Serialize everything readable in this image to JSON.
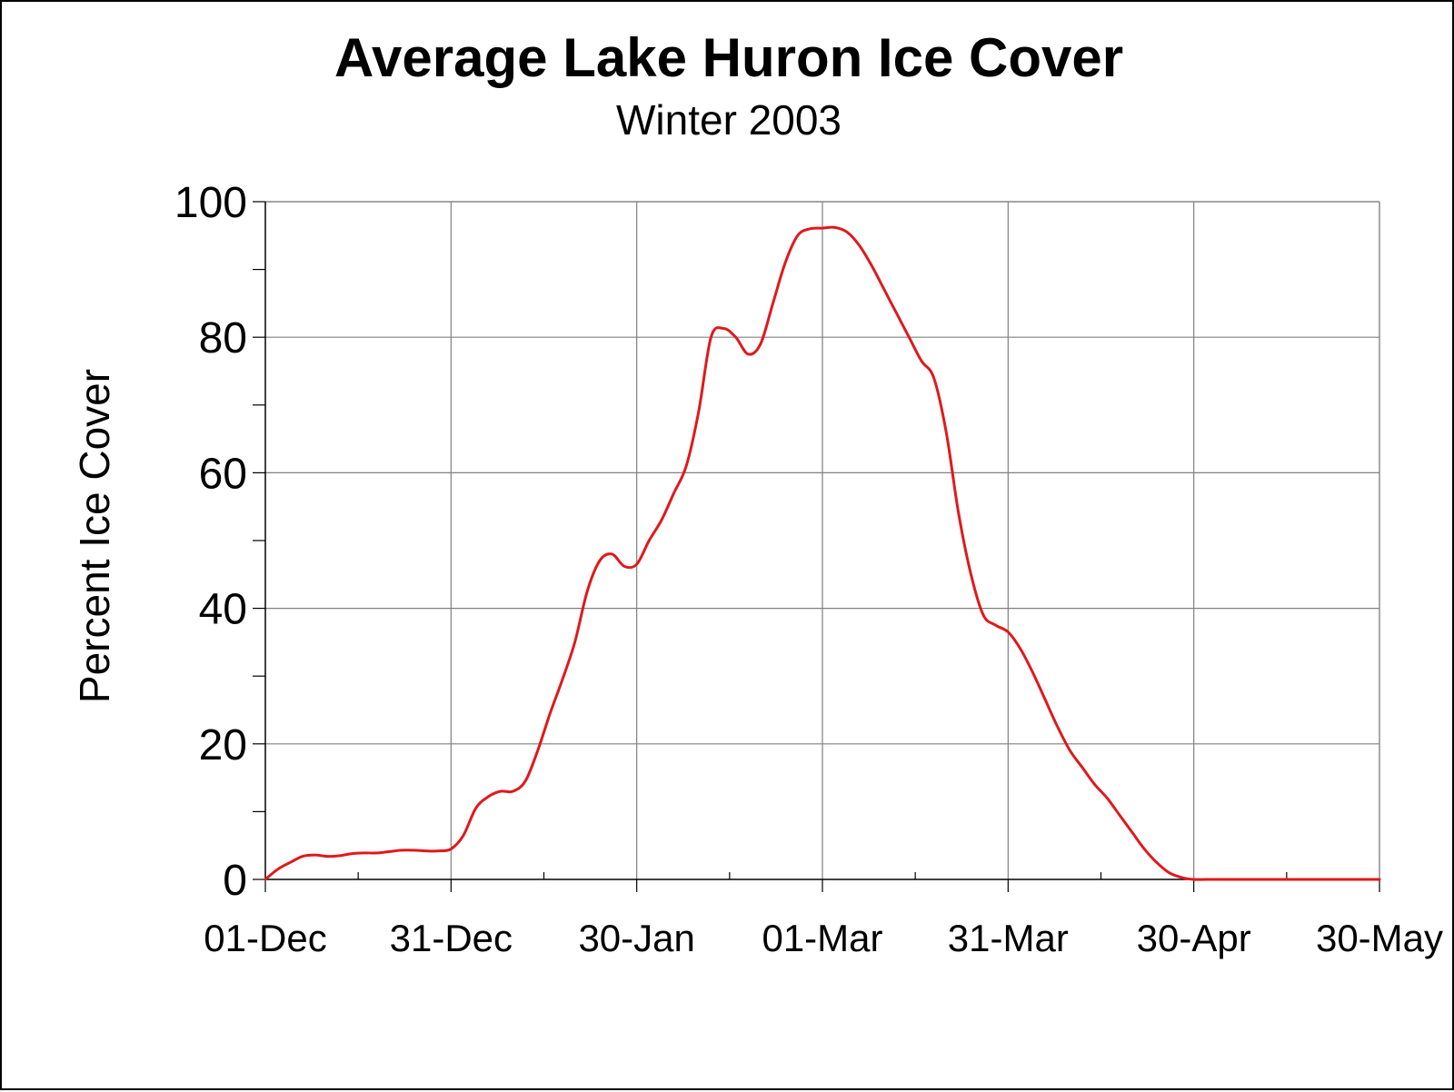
{
  "chart_data": {
    "type": "line",
    "title": "Average Lake Huron Ice Cover",
    "subtitle": "Winter 2003",
    "xlabel": "",
    "ylabel": "Percent Ice Cover",
    "ylim": [
      0,
      100
    ],
    "xlim": [
      "01-Dec",
      "30-May"
    ],
    "y_ticks": [
      "0",
      "20",
      "40",
      "60",
      "80",
      "100"
    ],
    "x_ticks": [
      "01-Dec",
      "31-Dec",
      "30-Jan",
      "01-Mar",
      "31-Mar",
      "30-Apr",
      "30-May"
    ],
    "grid": true,
    "legend": "none",
    "series": [
      {
        "color": "#e0191b",
        "x": [
          "01-Dec",
          "03-Dec",
          "05-Dec",
          "07-Dec",
          "09-Dec",
          "11-Dec",
          "13-Dec",
          "15-Dec",
          "17-Dec",
          "19-Dec",
          "21-Dec",
          "23-Dec",
          "25-Dec",
          "27-Dec",
          "29-Dec",
          "31-Dec",
          "02-Jan",
          "04-Jan",
          "06-Jan",
          "08-Jan",
          "10-Jan",
          "12-Jan",
          "14-Jan",
          "16-Jan",
          "18-Jan",
          "20-Jan",
          "22-Jan",
          "24-Jan",
          "26-Jan",
          "28-Jan",
          "30-Jan",
          "01-Feb",
          "03-Feb",
          "05-Feb",
          "07-Feb",
          "09-Feb",
          "11-Feb",
          "13-Feb",
          "15-Feb",
          "17-Feb",
          "19-Feb",
          "21-Feb",
          "23-Feb",
          "25-Feb",
          "27-Feb",
          "01-Mar",
          "03-Mar",
          "05-Mar",
          "07-Mar",
          "09-Mar",
          "11-Mar",
          "13-Mar",
          "15-Mar",
          "17-Mar",
          "19-Mar",
          "21-Mar",
          "23-Mar",
          "25-Mar",
          "27-Mar",
          "29-Mar",
          "31-Mar",
          "02-Apr",
          "04-Apr",
          "06-Apr",
          "08-Apr",
          "10-Apr",
          "12-Apr",
          "14-Apr",
          "16-Apr",
          "18-Apr",
          "20-Apr",
          "22-Apr",
          "24-Apr",
          "26-Apr",
          "28-Apr",
          "30-Apr",
          "02-May",
          "04-May",
          "06-May",
          "08-May",
          "10-May",
          "15-May",
          "20-May",
          "25-May",
          "30-May"
        ],
        "y": [
          0,
          1.5,
          2.5,
          3.4,
          3.6,
          3.4,
          3.5,
          3.8,
          3.9,
          3.9,
          4.1,
          4.3,
          4.3,
          4.2,
          4.2,
          4.5,
          6.5,
          10.5,
          12.2,
          13.0,
          13.0,
          14.5,
          19.0,
          24.5,
          29.5,
          35.0,
          42.5,
          47.0,
          48.0,
          46.2,
          46.5,
          50.0,
          53.0,
          57.0,
          61.0,
          69.0,
          80.0,
          81.3,
          80.0,
          77.5,
          79.0,
          85.0,
          91.0,
          95.0,
          96.0,
          96.1,
          96.2,
          95.5,
          93.5,
          90.5,
          87.0,
          83.5,
          80.0,
          76.5,
          74.0,
          66.0,
          54.0,
          45.0,
          39.0,
          37.5,
          36.5,
          34.0,
          30.5,
          26.5,
          22.5,
          19.0,
          16.5,
          14.0,
          12.0,
          9.5,
          7.0,
          4.5,
          2.5,
          1.0,
          0.3,
          0,
          0,
          0,
          0,
          0,
          0,
          0,
          0,
          0,
          0
        ]
      }
    ]
  }
}
